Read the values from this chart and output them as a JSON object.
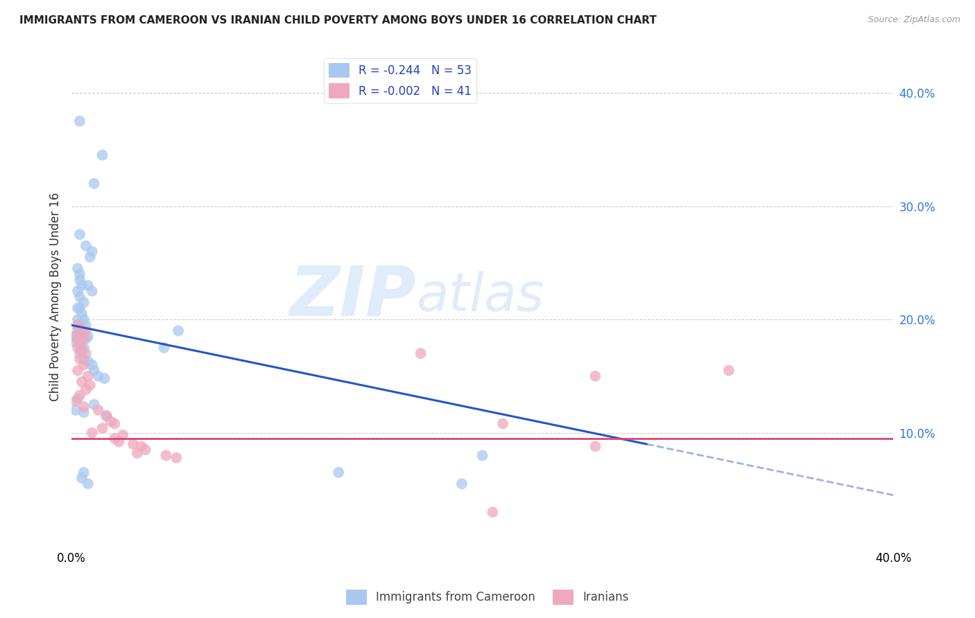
{
  "title": "IMMIGRANTS FROM CAMEROON VS IRANIAN CHILD POVERTY AMONG BOYS UNDER 16 CORRELATION CHART",
  "source": "Source: ZipAtlas.com",
  "ylabel": "Child Poverty Among Boys Under 16",
  "yticks": [
    0.0,
    10.0,
    20.0,
    30.0,
    40.0
  ],
  "ytick_labels_right": [
    "",
    "10.0%",
    "20.0%",
    "30.0%",
    "40.0%"
  ],
  "xlim": [
    0.0,
    40.0
  ],
  "ylim": [
    0.0,
    44.0
  ],
  "watermark": "ZIPatlas",
  "legend_entry1": "R = -0.244   N = 53",
  "legend_entry2": "R = -0.002   N = 41",
  "legend_label1": "Immigrants from Cameroon",
  "legend_label2": "Iranians",
  "blue_color": "#a8c8f0",
  "pink_color": "#f0a8bc",
  "blue_line_color": "#2255cc",
  "pink_line_color": "#dd4477",
  "blue_scatter": [
    [
      0.4,
      37.5
    ],
    [
      1.5,
      34.5
    ],
    [
      1.1,
      32.0
    ],
    [
      0.4,
      27.5
    ],
    [
      0.7,
      26.5
    ],
    [
      1.0,
      26.0
    ],
    [
      0.9,
      25.5
    ],
    [
      0.3,
      24.5
    ],
    [
      0.4,
      24.0
    ],
    [
      0.4,
      23.5
    ],
    [
      0.5,
      23.0
    ],
    [
      0.8,
      23.0
    ],
    [
      1.0,
      22.5
    ],
    [
      0.3,
      22.5
    ],
    [
      0.4,
      22.0
    ],
    [
      0.6,
      21.5
    ],
    [
      0.3,
      21.0
    ],
    [
      0.4,
      21.0
    ],
    [
      0.5,
      20.5
    ],
    [
      0.3,
      20.0
    ],
    [
      0.6,
      20.0
    ],
    [
      0.4,
      19.5
    ],
    [
      0.7,
      19.5
    ],
    [
      0.3,
      19.2
    ],
    [
      0.4,
      19.0
    ],
    [
      0.5,
      18.8
    ],
    [
      0.2,
      18.6
    ],
    [
      0.8,
      18.5
    ],
    [
      0.7,
      18.3
    ],
    [
      0.3,
      18.2
    ],
    [
      0.2,
      18.0
    ],
    [
      0.5,
      17.5
    ],
    [
      0.6,
      17.5
    ],
    [
      0.4,
      17.0
    ],
    [
      0.6,
      16.5
    ],
    [
      0.8,
      16.3
    ],
    [
      1.0,
      16.0
    ],
    [
      1.1,
      15.5
    ],
    [
      1.3,
      15.0
    ],
    [
      1.6,
      14.8
    ],
    [
      0.3,
      13.0
    ],
    [
      1.1,
      12.5
    ],
    [
      0.2,
      12.0
    ],
    [
      0.6,
      11.8
    ],
    [
      1.7,
      11.5
    ],
    [
      0.6,
      6.5
    ],
    [
      0.5,
      6.0
    ],
    [
      0.8,
      5.5
    ],
    [
      4.5,
      17.5
    ],
    [
      5.2,
      19.0
    ],
    [
      13.0,
      6.5
    ],
    [
      19.0,
      5.5
    ],
    [
      20.0,
      8.0
    ]
  ],
  "pink_scatter": [
    [
      0.3,
      19.5
    ],
    [
      0.4,
      19.3
    ],
    [
      0.7,
      19.0
    ],
    [
      0.5,
      18.8
    ],
    [
      0.2,
      18.5
    ],
    [
      0.6,
      18.3
    ],
    [
      0.4,
      17.8
    ],
    [
      0.3,
      17.5
    ],
    [
      0.5,
      17.2
    ],
    [
      0.7,
      17.0
    ],
    [
      0.4,
      16.5
    ],
    [
      0.6,
      16.0
    ],
    [
      0.3,
      15.5
    ],
    [
      0.8,
      15.0
    ],
    [
      0.5,
      14.5
    ],
    [
      0.9,
      14.2
    ],
    [
      0.7,
      13.8
    ],
    [
      0.4,
      13.3
    ],
    [
      0.2,
      12.8
    ],
    [
      0.6,
      12.3
    ],
    [
      1.3,
      12.0
    ],
    [
      1.7,
      11.5
    ],
    [
      1.9,
      11.0
    ],
    [
      2.1,
      10.8
    ],
    [
      1.5,
      10.4
    ],
    [
      1.0,
      10.0
    ],
    [
      2.5,
      9.8
    ],
    [
      2.1,
      9.5
    ],
    [
      2.3,
      9.2
    ],
    [
      3.0,
      9.0
    ],
    [
      3.4,
      8.8
    ],
    [
      3.6,
      8.5
    ],
    [
      3.2,
      8.2
    ],
    [
      4.6,
      8.0
    ],
    [
      5.1,
      7.8
    ],
    [
      17.0,
      17.0
    ],
    [
      25.5,
      15.0
    ],
    [
      32.0,
      15.5
    ],
    [
      21.0,
      10.8
    ],
    [
      25.5,
      8.8
    ],
    [
      20.5,
      3.0
    ]
  ],
  "blue_line_solid": [
    [
      0.0,
      19.5
    ],
    [
      28.0,
      9.0
    ]
  ],
  "blue_line_dash": [
    [
      28.0,
      9.0
    ],
    [
      40.0,
      4.5
    ]
  ],
  "pink_line": [
    [
      0.0,
      9.5
    ],
    [
      40.0,
      9.5
    ]
  ]
}
